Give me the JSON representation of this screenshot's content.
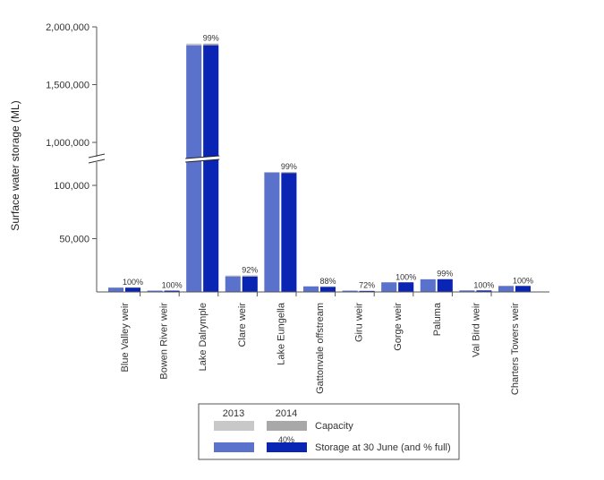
{
  "chart_data": {
    "type": "bar",
    "ylabel": "Surface water storage (ML)",
    "xlabel": "",
    "broken_axis": true,
    "y_ticks_lower": [
      "50,000",
      "100,000"
    ],
    "y_ticks_upper": [
      "1,000,000",
      "1,500,000",
      "2,000,000"
    ],
    "categories": [
      "Blue Valley weir",
      "Bowen River weir",
      "Lake Dalrymple",
      "Clare weir",
      "Lake Eungella",
      "Gattonvale offstream",
      "Giru weir",
      "Gorge weir",
      "Paluma",
      "Val Bird weir",
      "Charters Towers weir"
    ],
    "series": [
      {
        "name": "2013",
        "capacity": [
          4000,
          1200,
          1855000,
          15500,
          112500,
          5200,
          1200,
          9000,
          12000,
          1400,
          5600
        ],
        "storage": [
          4000,
          1200,
          1840000,
          14500,
          112000,
          5200,
          1200,
          9000,
          11800,
          1400,
          5600
        ]
      },
      {
        "name": "2014",
        "capacity": [
          4000,
          1200,
          1855000,
          15500,
          112500,
          5200,
          1200,
          9000,
          12000,
          1400,
          5600
        ],
        "storage": [
          4000,
          1200,
          1840000,
          14300,
          111500,
          4600,
          860,
          9000,
          11900,
          1400,
          5600
        ],
        "percent_labels": [
          "100%",
          "100%",
          "99%",
          "92%",
          "99%",
          "88%",
          "72%",
          "100%",
          "99%",
          "100%",
          "100%"
        ]
      }
    ],
    "legend": {
      "years": [
        "2013",
        "2014"
      ],
      "capacity_label": "Capacity",
      "storage_label": "Storage at 30 June (and % full)",
      "sample_pct": "40%",
      "position": "bottom-center"
    },
    "colors": {
      "capacity_2013": "#c8c8c8",
      "capacity_2014": "#a8a8a8",
      "storage_2013": "#5b72cc",
      "storage_2014": "#0a24b4"
    }
  }
}
